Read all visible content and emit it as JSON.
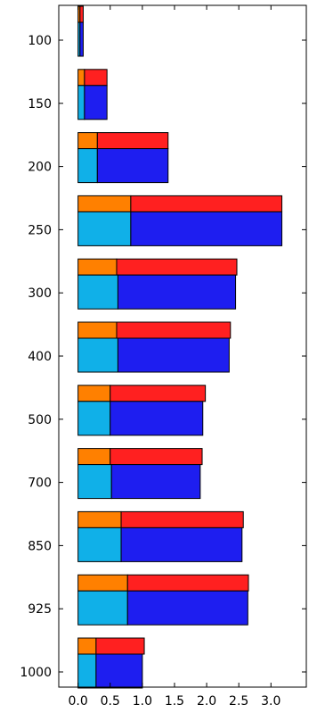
{
  "chart_data": {
    "type": "bar",
    "orientation": "horizontal",
    "stacked": true,
    "title": "",
    "xlabel": "",
    "ylabel": "",
    "categories": [
      "100",
      "150",
      "200",
      "250",
      "300",
      "400",
      "500",
      "700",
      "850",
      "925",
      "1000"
    ],
    "xlim": [
      -0.3,
      3.55
    ],
    "xticks": [
      "0.0",
      "0.5",
      "1.0",
      "1.5",
      "2.0",
      "2.5",
      "3.0"
    ],
    "xtick_values": [
      0.0,
      0.5,
      1.0,
      1.5,
      2.0,
      2.5,
      3.0
    ],
    "grid": false,
    "legend": "none",
    "panels": [
      {
        "position": "upper",
        "series": [
          {
            "color": "#ff8000",
            "values": [
              0.03,
              0.1,
              0.3,
              0.82,
              0.6,
              0.6,
              0.5,
              0.5,
              0.67,
              0.77,
              0.28
            ]
          },
          {
            "color": "#ff2020",
            "values": [
              0.05,
              0.35,
              1.1,
              2.35,
              1.87,
              1.77,
              1.48,
              1.43,
              1.9,
              1.88,
              0.75
            ]
          }
        ]
      },
      {
        "position": "lower",
        "series": [
          {
            "color": "#10b0e8",
            "values": [
              0.03,
              0.1,
              0.3,
              0.82,
              0.62,
              0.62,
              0.5,
              0.52,
              0.67,
              0.77,
              0.28
            ]
          },
          {
            "color": "#1e1ef0",
            "values": [
              0.05,
              0.35,
              1.1,
              2.35,
              1.83,
              1.73,
              1.44,
              1.38,
              1.88,
              1.87,
              0.72
            ]
          }
        ]
      }
    ]
  }
}
